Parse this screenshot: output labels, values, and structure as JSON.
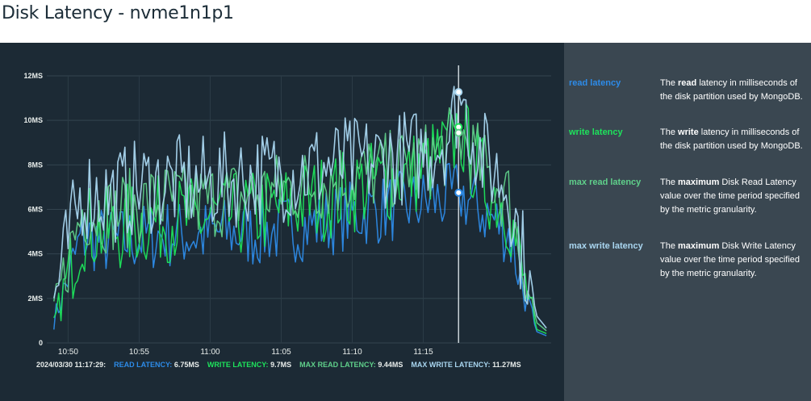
{
  "header": {
    "title": "Disk Latency - nvme1n1p1"
  },
  "colors": {
    "chart_bg": "#1c2a35",
    "legend_bg": "#3a4751",
    "read": "#2d8be8",
    "write": "#1ee35c",
    "max_read": "#5fcf8a",
    "max_write": "#a9d6f0",
    "cursor": "#c9d3d8"
  },
  "chart_data": {
    "type": "line",
    "yaxis": {
      "ticks": [
        "0",
        "2MS",
        "4MS",
        "6MS",
        "8MS",
        "10MS",
        "12MS"
      ],
      "ylim": [
        0,
        12
      ],
      "unit": "ms"
    },
    "xaxis": {
      "ticks": [
        "10:50",
        "10:55",
        "11:00",
        "11:05",
        "11:10",
        "11:15"
      ],
      "xlim": [
        "10:48:30",
        "11:24:00"
      ]
    },
    "grid": true,
    "cursor_time": "11:17:29",
    "series": [
      {
        "name": "read latency",
        "color": "#2d8be8",
        "x": [
          "10:49:00",
          "10:51:00",
          "10:53:00",
          "10:55:00",
          "10:57:00",
          "10:59:00",
          "11:01:00",
          "11:03:00",
          "11:05:00",
          "11:07:00",
          "11:09:00",
          "11:11:00",
          "11:13:00",
          "11:15:00",
          "11:17:00",
          "11:17:29",
          "11:19:00",
          "11:21:00",
          "11:22:00",
          "11:23:00",
          "11:23:45"
        ],
        "values": [
          1.0,
          4.8,
          4.5,
          4.7,
          4.9,
          4.8,
          5.0,
          4.9,
          5.1,
          5.3,
          5.6,
          5.9,
          6.1,
          6.3,
          6.5,
          6.75,
          6.0,
          5.0,
          2.5,
          0.5,
          0.3
        ]
      },
      {
        "name": "write latency",
        "color": "#1ee35c",
        "x": [
          "10:49:00",
          "10:51:00",
          "10:53:00",
          "10:55:00",
          "10:57:00",
          "10:59:00",
          "11:01:00",
          "11:03:00",
          "11:05:00",
          "11:07:00",
          "11:09:00",
          "11:11:00",
          "11:13:00",
          "11:15:00",
          "11:17:00",
          "11:17:29",
          "11:19:00",
          "11:21:00",
          "11:22:00",
          "11:23:00",
          "11:23:45"
        ],
        "values": [
          0.8,
          5.2,
          5.0,
          5.4,
          5.6,
          5.5,
          5.7,
          5.8,
          6.1,
          6.4,
          6.7,
          7.1,
          7.4,
          7.8,
          8.8,
          9.7,
          7.5,
          6.0,
          3.0,
          0.6,
          0.4
        ]
      },
      {
        "name": "max read latency",
        "color": "#5fcf8a",
        "x": [
          "10:49:00",
          "10:51:00",
          "10:53:00",
          "10:55:00",
          "10:57:00",
          "10:59:00",
          "11:01:00",
          "11:03:00",
          "11:05:00",
          "11:07:00",
          "11:09:00",
          "11:11:00",
          "11:13:00",
          "11:15:00",
          "11:17:00",
          "11:17:29",
          "11:19:00",
          "11:21:00",
          "11:22:00",
          "11:23:00",
          "11:23:45"
        ],
        "values": [
          1.5,
          6.0,
          5.8,
          6.2,
          6.4,
          6.3,
          6.5,
          6.6,
          6.9,
          7.1,
          7.4,
          7.6,
          7.8,
          8.1,
          8.9,
          9.44,
          8.0,
          6.5,
          3.5,
          0.9,
          0.5
        ]
      },
      {
        "name": "max write latency",
        "color": "#a9d6f0",
        "x": [
          "10:49:00",
          "10:51:00",
          "10:53:00",
          "10:55:00",
          "10:57:00",
          "10:59:00",
          "11:01:00",
          "11:03:00",
          "11:05:00",
          "11:07:00",
          "11:09:00",
          "11:11:00",
          "11:13:00",
          "11:15:00",
          "11:17:00",
          "11:17:29",
          "11:19:00",
          "11:21:00",
          "11:22:00",
          "11:23:00",
          "11:23:45"
        ],
        "values": [
          2.0,
          6.8,
          6.6,
          7.0,
          7.2,
          7.1,
          7.3,
          7.4,
          7.6,
          7.8,
          8.0,
          8.1,
          8.3,
          8.5,
          9.5,
          11.27,
          8.5,
          7.0,
          4.0,
          1.2,
          0.6
        ]
      }
    ]
  },
  "tooltip": {
    "timestamp": "2024/03/30 11:17:29:",
    "read_label": "READ LATENCY:",
    "read_value": "6.75MS",
    "write_label": "WRITE LATENCY:",
    "write_value": "9.7MS",
    "max_read_label": "MAX READ LATENCY:",
    "max_read_value": "9.44MS",
    "max_write_label": "MAX WRITE LATENCY:",
    "max_write_value": "11.27MS"
  },
  "legend": [
    {
      "key": "read latency",
      "color": "#2d8be8",
      "pre": "The ",
      "bold": "read",
      "post": " latency in milliseconds of the disk partition used by MongoDB."
    },
    {
      "key": "write latency",
      "color": "#1ee35c",
      "pre": "The ",
      "bold": "write",
      "post": " latency in milliseconds of the disk partition used by MongoDB."
    },
    {
      "key": "max read latency",
      "color": "#5fcf8a",
      "pre": "The ",
      "bold": "maximum",
      "post": " Disk Read Latency value over the time period specified by the metric granularity."
    },
    {
      "key": "max write latency",
      "color": "#a9d6f0",
      "pre": "The ",
      "bold": "maximum",
      "post": " Disk Write Latency value over the time period specified by the metric granularity."
    }
  ]
}
